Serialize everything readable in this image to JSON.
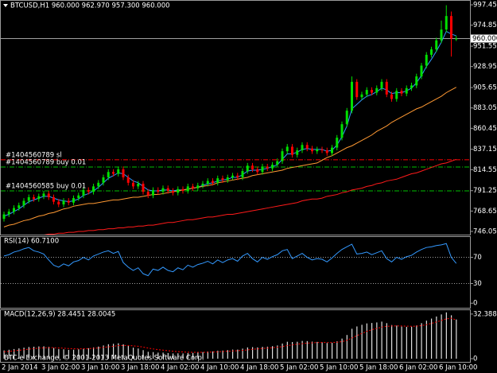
{
  "chart_data": [
    {
      "type": "candlestick",
      "title": "BTCUSD,H1  960.000 962.970 957.300 960.000",
      "categories": [
        "2 Jan 2014",
        null,
        null,
        null,
        null,
        null,
        null,
        null,
        "3 Jan 02:00",
        null,
        null,
        null,
        null,
        null,
        null,
        null,
        "3 Jan 10:00",
        null,
        null,
        null,
        null,
        null,
        null,
        null,
        "3 Jan 18:00",
        null,
        null,
        null,
        null,
        null,
        null,
        null,
        "4 Jan 02:00",
        null,
        null,
        null,
        null,
        null,
        null,
        null,
        "4 Jan 10:00",
        null,
        null,
        null,
        null,
        null,
        null,
        null,
        "4 Jan 18:00",
        null,
        null,
        null,
        null,
        null,
        null,
        null,
        "5 Jan 02:00",
        null,
        null,
        null,
        null,
        null,
        null,
        null,
        "5 Jan 10:00",
        null,
        null,
        null,
        null,
        null,
        null,
        null,
        "5 Jan 18:00",
        null,
        null,
        null,
        null,
        null,
        null,
        null,
        "6 Jan 02:00",
        null,
        null,
        null,
        null,
        null,
        null,
        null,
        "6 Jan 10:00",
        null,
        null,
        null
      ],
      "open": [
        760,
        765,
        768,
        772,
        775,
        780,
        784,
        782,
        785,
        788,
        784,
        779,
        776,
        780,
        778,
        783,
        786,
        792,
        790,
        796,
        800,
        806,
        812,
        810,
        815,
        806,
        800,
        796,
        799,
        790,
        786,
        792,
        790,
        794,
        791,
        789,
        793,
        791,
        796,
        794,
        797,
        799,
        802,
        800,
        805,
        803,
        806,
        808,
        806,
        813,
        819,
        815,
        812,
        818,
        816,
        820,
        824,
        835,
        840,
        831,
        836,
        842,
        838,
        835,
        837,
        836,
        833,
        839,
        850,
        865,
        880,
        912,
        895,
        898,
        903,
        900,
        905,
        912,
        898,
        893,
        902,
        899,
        905,
        908,
        918,
        930,
        942,
        948,
        958,
        970,
        985,
        960
      ],
      "high": [
        768,
        771,
        775,
        778,
        783,
        787,
        787,
        788,
        791,
        791,
        787,
        782,
        783,
        783,
        786,
        789,
        795,
        795,
        799,
        803,
        809,
        815,
        815,
        818,
        818,
        809,
        803,
        802,
        802,
        793,
        795,
        795,
        797,
        797,
        794,
        796,
        796,
        799,
        799,
        800,
        802,
        805,
        805,
        808,
        808,
        809,
        811,
        811,
        816,
        822,
        822,
        818,
        821,
        821,
        823,
        827,
        838,
        843,
        843,
        839,
        845,
        845,
        841,
        840,
        840,
        839,
        842,
        853,
        868,
        883,
        918,
        915,
        901,
        906,
        906,
        908,
        915,
        915,
        901,
        905,
        905,
        908,
        911,
        921,
        933,
        945,
        951,
        961,
        980,
        997,
        990,
        962.97
      ],
      "low": [
        757,
        762,
        765,
        769,
        772,
        777,
        779,
        779,
        782,
        781,
        776,
        773,
        773,
        775,
        775,
        780,
        783,
        787,
        787,
        793,
        797,
        803,
        807,
        807,
        803,
        797,
        793,
        793,
        787,
        783,
        783,
        787,
        787,
        788,
        786,
        786,
        788,
        788,
        791,
        791,
        794,
        796,
        797,
        797,
        800,
        800,
        803,
        803,
        803,
        810,
        812,
        809,
        809,
        813,
        813,
        817,
        821,
        832,
        828,
        828,
        833,
        835,
        832,
        832,
        833,
        830,
        830,
        836,
        847,
        862,
        877,
        892,
        892,
        895,
        897,
        897,
        902,
        895,
        890,
        890,
        896,
        896,
        902,
        905,
        915,
        927,
        939,
        945,
        955,
        967,
        940,
        957.3
      ],
      "close": [
        765,
        768,
        772,
        775,
        780,
        784,
        782,
        785,
        788,
        784,
        779,
        776,
        780,
        778,
        783,
        786,
        792,
        790,
        796,
        800,
        806,
        812,
        810,
        815,
        806,
        800,
        796,
        799,
        790,
        786,
        792,
        790,
        794,
        791,
        789,
        793,
        791,
        796,
        794,
        797,
        799,
        802,
        800,
        805,
        803,
        806,
        808,
        806,
        813,
        819,
        815,
        812,
        818,
        816,
        820,
        824,
        835,
        840,
        831,
        836,
        842,
        838,
        835,
        837,
        836,
        833,
        839,
        850,
        865,
        880,
        912,
        895,
        898,
        903,
        900,
        905,
        912,
        898,
        893,
        902,
        899,
        905,
        908,
        918,
        930,
        942,
        948,
        958,
        970,
        985,
        960,
        960
      ],
      "bull_color": "#00e000",
      "bear_color": "#ff0000",
      "series": [
        {
          "color": "#3399ff",
          "values": [
            763,
            765,
            768,
            771,
            775,
            779,
            781,
            783,
            785,
            785,
            783,
            781,
            780,
            779,
            780,
            782,
            786,
            788,
            791,
            795,
            800,
            805,
            808,
            811,
            810,
            806,
            802,
            800,
            796,
            792,
            791,
            791,
            792,
            792,
            791,
            792,
            792,
            793,
            794,
            795,
            797,
            799,
            800,
            802,
            803,
            804,
            806,
            806,
            809,
            813,
            814,
            814,
            815,
            816,
            818,
            820,
            826,
            832,
            832,
            834,
            837,
            838,
            837,
            837,
            837,
            835,
            836,
            842,
            851,
            863,
            882,
            887,
            892,
            896,
            898,
            901,
            905,
            903,
            899,
            900,
            900,
            902,
            905,
            911,
            919,
            929,
            937,
            946,
            956,
            968,
            965,
            963
          ]
        },
        {
          "color": "#ff9933",
          "values": [
            751,
            753,
            754,
            756,
            758,
            759,
            761,
            763,
            764,
            766,
            767,
            769,
            771,
            772,
            774,
            775,
            776,
            777,
            777,
            778,
            779,
            780,
            781,
            781,
            782,
            783,
            784,
            784,
            785,
            786,
            787,
            787,
            788,
            789,
            790,
            791,
            792,
            793,
            794,
            795,
            796,
            797,
            798,
            800,
            801,
            802,
            803,
            804,
            805,
            806,
            808,
            809,
            810,
            811,
            812,
            813,
            814,
            816,
            817,
            818,
            819,
            820,
            821,
            822,
            825,
            828,
            830,
            833,
            836,
            839,
            841,
            844,
            847,
            850,
            853,
            857,
            860,
            863,
            867,
            870,
            873,
            876,
            879,
            882,
            884,
            887,
            890,
            893,
            896,
            900,
            903,
            906
          ]
        },
        {
          "color": "#ff1a1a",
          "values": [
            738,
            739,
            739,
            740,
            740,
            741,
            741,
            742,
            742,
            743,
            743,
            744,
            744,
            745,
            745,
            746,
            746,
            747,
            747,
            748,
            748,
            749,
            749,
            750,
            750,
            751,
            751,
            752,
            752,
            753,
            753,
            754,
            755,
            756,
            756,
            757,
            758,
            759,
            759,
            760,
            761,
            762,
            762,
            763,
            764,
            765,
            765,
            766,
            767,
            768,
            769,
            770,
            771,
            772,
            773,
            774,
            775,
            776,
            777,
            778,
            780,
            781,
            782,
            782,
            783,
            785,
            786,
            787,
            789,
            790,
            792,
            793,
            794,
            796,
            797,
            799,
            800,
            802,
            803,
            804,
            806,
            808,
            810,
            811,
            813,
            815,
            817,
            819,
            821,
            822,
            824,
            826
          ]
        }
      ],
      "ylim": [
        742.5,
        1001.9
      ],
      "yticks": [
        997.45,
        974.85,
        951.55,
        928.95,
        905.65,
        883.05,
        860.45,
        837.15,
        814.55,
        791.25,
        768.65,
        746.05
      ],
      "last_price": {
        "value": 960,
        "label": "960.000"
      },
      "levels": [
        {
          "label": "#1404560789 sl",
          "value": 825.5,
          "color": "#ff0000"
        },
        {
          "label": "#1404560789 buy 0.01",
          "value": 817.5,
          "color": "#00c000"
        },
        {
          "label": "#1404560585 buy 0.01",
          "value": 791.0,
          "color": "#00c000"
        }
      ],
      "copyright": "BTC-e Exchange, © 2001-2013 MetaQuotes Software Corp."
    },
    {
      "type": "line",
      "title": "RSI(14) 60.7100",
      "series": [
        {
          "color": "#3399ff",
          "values": [
            72,
            74,
            78,
            80,
            83,
            85,
            80,
            78,
            75,
            66,
            58,
            55,
            60,
            57,
            63,
            65,
            70,
            66,
            72,
            75,
            78,
            80,
            76,
            79,
            62,
            55,
            50,
            54,
            45,
            42,
            52,
            50,
            55,
            50,
            48,
            54,
            51,
            58,
            55,
            59,
            61,
            64,
            60,
            66,
            62,
            66,
            68,
            64,
            72,
            76,
            68,
            63,
            70,
            67,
            71,
            74,
            80,
            82,
            68,
            72,
            76,
            70,
            66,
            68,
            67,
            63,
            69,
            76,
            82,
            86,
            90,
            75,
            76,
            78,
            74,
            77,
            80,
            68,
            63,
            70,
            67,
            71,
            73,
            78,
            82,
            85,
            86,
            88,
            89,
            91,
            70,
            60.71
          ]
        }
      ],
      "ylim": [
        -7,
        101
      ],
      "yticks": [
        70,
        30,
        0
      ],
      "levels": [
        70,
        30
      ]
    },
    {
      "type": "bar",
      "title": "MACD(12,26,9) 28.4451 28.0045",
      "values": [
        6,
        6.5,
        7,
        7.5,
        8,
        8.5,
        8.7,
        8.9,
        9,
        8.6,
        7.8,
        7,
        6.8,
        6.4,
        6.5,
        6.8,
        7.4,
        7.6,
        8.2,
        8.8,
        9.6,
        10.5,
        10.8,
        11.2,
        10.4,
        9.2,
        8,
        7.4,
        6.2,
        5,
        4.8,
        4.4,
        4.4,
        4.1,
        3.8,
        3.9,
        3.8,
        4.1,
        4.2,
        4.5,
        4.8,
        5.2,
        5.3,
        5.8,
        5.9,
        6.2,
        6.6,
        6.6,
        7.3,
        8.2,
        8.4,
        8.2,
        8.6,
        8.7,
        9.1,
        9.6,
        11,
        12.3,
        12.1,
        12.3,
        12.9,
        12.8,
        12.4,
        12.2,
        11.9,
        11.4,
        11.5,
        12.6,
        14.6,
        17.2,
        21.7,
        23.4,
        24.6,
        25.6,
        25.9,
        26.3,
        26.9,
        25.8,
        24.4,
        24,
        23.3,
        23.1,
        23.2,
        24.1,
        25.8,
        27.6,
        29.1,
        30.6,
        32.1,
        33.6,
        31.5,
        28.4451
      ],
      "color": "#e0e0e0",
      "series": [
        {
          "color": "#ff0000",
          "values": [
            5,
            5.3,
            5.7,
            6.1,
            6.5,
            6.9,
            7.3,
            7.6,
            7.9,
            8,
            8,
            7.8,
            7.6,
            7.4,
            7.2,
            7.1,
            7.2,
            7.3,
            7.5,
            7.8,
            8.2,
            8.6,
            9,
            9.5,
            9.6,
            9.6,
            9.3,
            9,
            8.4,
            7.7,
            7.1,
            6.6,
            6.2,
            5.8,
            5.4,
            5.1,
            4.9,
            4.7,
            4.6,
            4.6,
            4.6,
            4.7,
            4.8,
            5,
            5.2,
            5.4,
            5.6,
            5.8,
            6,
            6.4,
            6.8,
            7.1,
            7.4,
            7.7,
            8,
            8.3,
            8.8,
            9.5,
            10,
            10.5,
            10.9,
            11.3,
            11.5,
            11.7,
            11.8,
            11.7,
            11.7,
            11.9,
            12.4,
            13.3,
            15,
            16.7,
            18.3,
            19.8,
            21,
            22,
            22.9,
            23.5,
            23.7,
            23.8,
            23.7,
            23.6,
            23.5,
            23.6,
            24,
            24.7,
            25.6,
            26.6,
            27.7,
            28.9,
            29.4,
            28.0045
          ]
        }
      ],
      "ylim": [
        -2.3,
        35.2
      ],
      "yticks": [
        32.3883,
        0
      ]
    }
  ]
}
